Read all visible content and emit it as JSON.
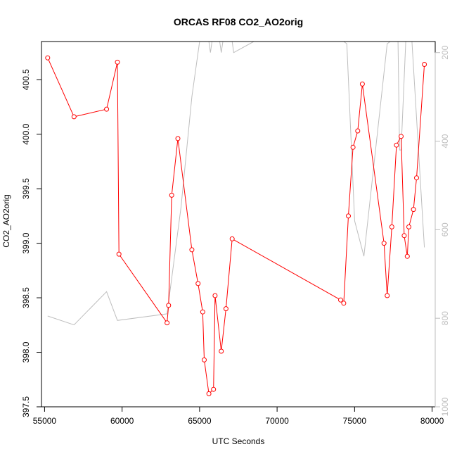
{
  "chart_data": {
    "type": "line",
    "title": "ORCAS RF08 CO2_AO2orig",
    "xlabel": "UTC Seconds",
    "ylabel": "CO2_AO2orig",
    "xlim": [
      54800,
      80200
    ],
    "ylim": [
      397.5,
      400.85
    ],
    "y2lim": [
      1000,
      175
    ],
    "x_ticks": [
      55000,
      60000,
      65000,
      70000,
      75000,
      80000
    ],
    "y_ticks": [
      397.5,
      398.0,
      398.5,
      399.0,
      399.5,
      400.0,
      400.5
    ],
    "y_tick_labels": [
      "397.5",
      "398.0",
      "398.5",
      "399.0",
      "399.5",
      "400.0",
      "400.5"
    ],
    "y2_ticks": [
      200,
      400,
      600,
      800,
      1000
    ],
    "grid": false,
    "colors": {
      "co2": "#ff0000",
      "secondary": "#bebebe",
      "axis": "#000000",
      "axis2": "#bebebe"
    },
    "series": [
      {
        "values": [
          [
            55200,
            400.7
          ],
          [
            56900,
            400.16
          ],
          [
            59000,
            400.23
          ],
          [
            59700,
            400.66
          ],
          [
            59800,
            398.9
          ],
          [
            62900,
            398.27
          ],
          [
            63000,
            398.43
          ],
          [
            63200,
            399.44
          ],
          [
            63600,
            399.96
          ],
          [
            64500,
            398.94
          ],
          [
            64900,
            398.63
          ],
          [
            65200,
            398.37
          ],
          [
            65300,
            397.93
          ],
          [
            65600,
            397.62
          ],
          [
            65900,
            397.66
          ],
          [
            66000,
            398.52
          ],
          [
            66400,
            398.01
          ],
          [
            66700,
            398.4
          ],
          [
            67100,
            399.04
          ],
          [
            74100,
            398.48
          ],
          [
            74300,
            398.45
          ],
          [
            74600,
            399.25
          ],
          [
            74900,
            399.88
          ],
          [
            75200,
            400.03
          ],
          [
            75500,
            400.46
          ],
          [
            76900,
            399.0
          ],
          [
            77100,
            398.52
          ],
          [
            77400,
            399.15
          ],
          [
            77700,
            399.9
          ],
          [
            78000,
            399.98
          ],
          [
            78200,
            399.07
          ],
          [
            78400,
            398.88
          ],
          [
            78500,
            399.15
          ],
          [
            78800,
            399.31
          ],
          [
            79000,
            399.6
          ],
          [
            79500,
            400.64
          ]
        ]
      },
      {
        "values": [
          [
            55200,
            795
          ],
          [
            56900,
            815
          ],
          [
            59000,
            740
          ],
          [
            59700,
            805
          ],
          [
            62900,
            790
          ],
          [
            63800,
            550
          ],
          [
            64500,
            300
          ],
          [
            65000,
            175
          ],
          [
            65600,
            175
          ],
          [
            65700,
            200
          ],
          [
            65800,
            175
          ],
          [
            66300,
            175
          ],
          [
            66400,
            200
          ],
          [
            66500,
            175
          ],
          [
            67100,
            175
          ],
          [
            67200,
            200
          ],
          [
            68500,
            175
          ],
          [
            74300,
            175
          ],
          [
            74500,
            180
          ],
          [
            75000,
            580
          ],
          [
            75600,
            660
          ],
          [
            77100,
            180
          ],
          [
            77300,
            175
          ],
          [
            77800,
            175
          ],
          [
            77900,
            420
          ],
          [
            78000,
            420
          ],
          [
            78300,
            175
          ],
          [
            78700,
            175
          ],
          [
            79500,
            640
          ]
        ]
      }
    ]
  }
}
